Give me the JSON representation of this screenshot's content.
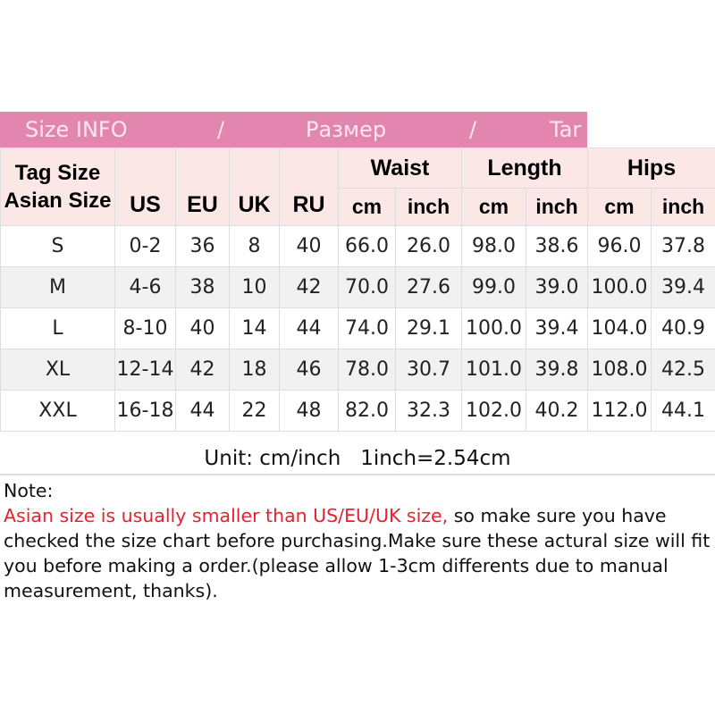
{
  "banner": {
    "part1": "Size INFO",
    "sep1": "/",
    "part2": "Размер",
    "sep2": "/",
    "part3": "Tar"
  },
  "header": {
    "tag_size": "Tag Size",
    "asian_size": "Asian Size",
    "us": "US",
    "eu": "EU",
    "uk": "UK",
    "ru": "RU",
    "waist": "Waist",
    "length": "Length",
    "hips": "Hips",
    "cm": "cm",
    "inch": "inch"
  },
  "rows": [
    [
      "S",
      "0-2",
      "36",
      "8",
      "40",
      "66.0",
      "26.0",
      "98.0",
      "38.6",
      "96.0",
      "37.8"
    ],
    [
      "M",
      "4-6",
      "38",
      "10",
      "42",
      "70.0",
      "27.6",
      "99.0",
      "39.0",
      "100.0",
      "39.4"
    ],
    [
      "L",
      "8-10",
      "40",
      "14",
      "44",
      "74.0",
      "29.1",
      "100.0",
      "39.4",
      "104.0",
      "40.9"
    ],
    [
      "XL",
      "12-14",
      "42",
      "18",
      "46",
      "78.0",
      "30.7",
      "101.0",
      "39.8",
      "108.0",
      "42.5"
    ],
    [
      "XXL",
      "16-18",
      "44",
      "22",
      "48",
      "82.0",
      "32.3",
      "102.0",
      "40.2",
      "112.0",
      "44.1"
    ]
  ],
  "unit": "Unit: cm/inch   1inch=2.54cm",
  "note": {
    "label": "Note:",
    "red": "Asian size is usually smaller than US/EU/UK size,",
    "text": " so make sure you have checked the size chart before purchasing.Make sure these actural size will fit you before making a order.(please allow 1-3cm differents due to manual measurement, thanks)."
  },
  "colors": {
    "banner": "#e286b0",
    "header_bg": "#fbe8e6",
    "warning": "#e8212e"
  }
}
